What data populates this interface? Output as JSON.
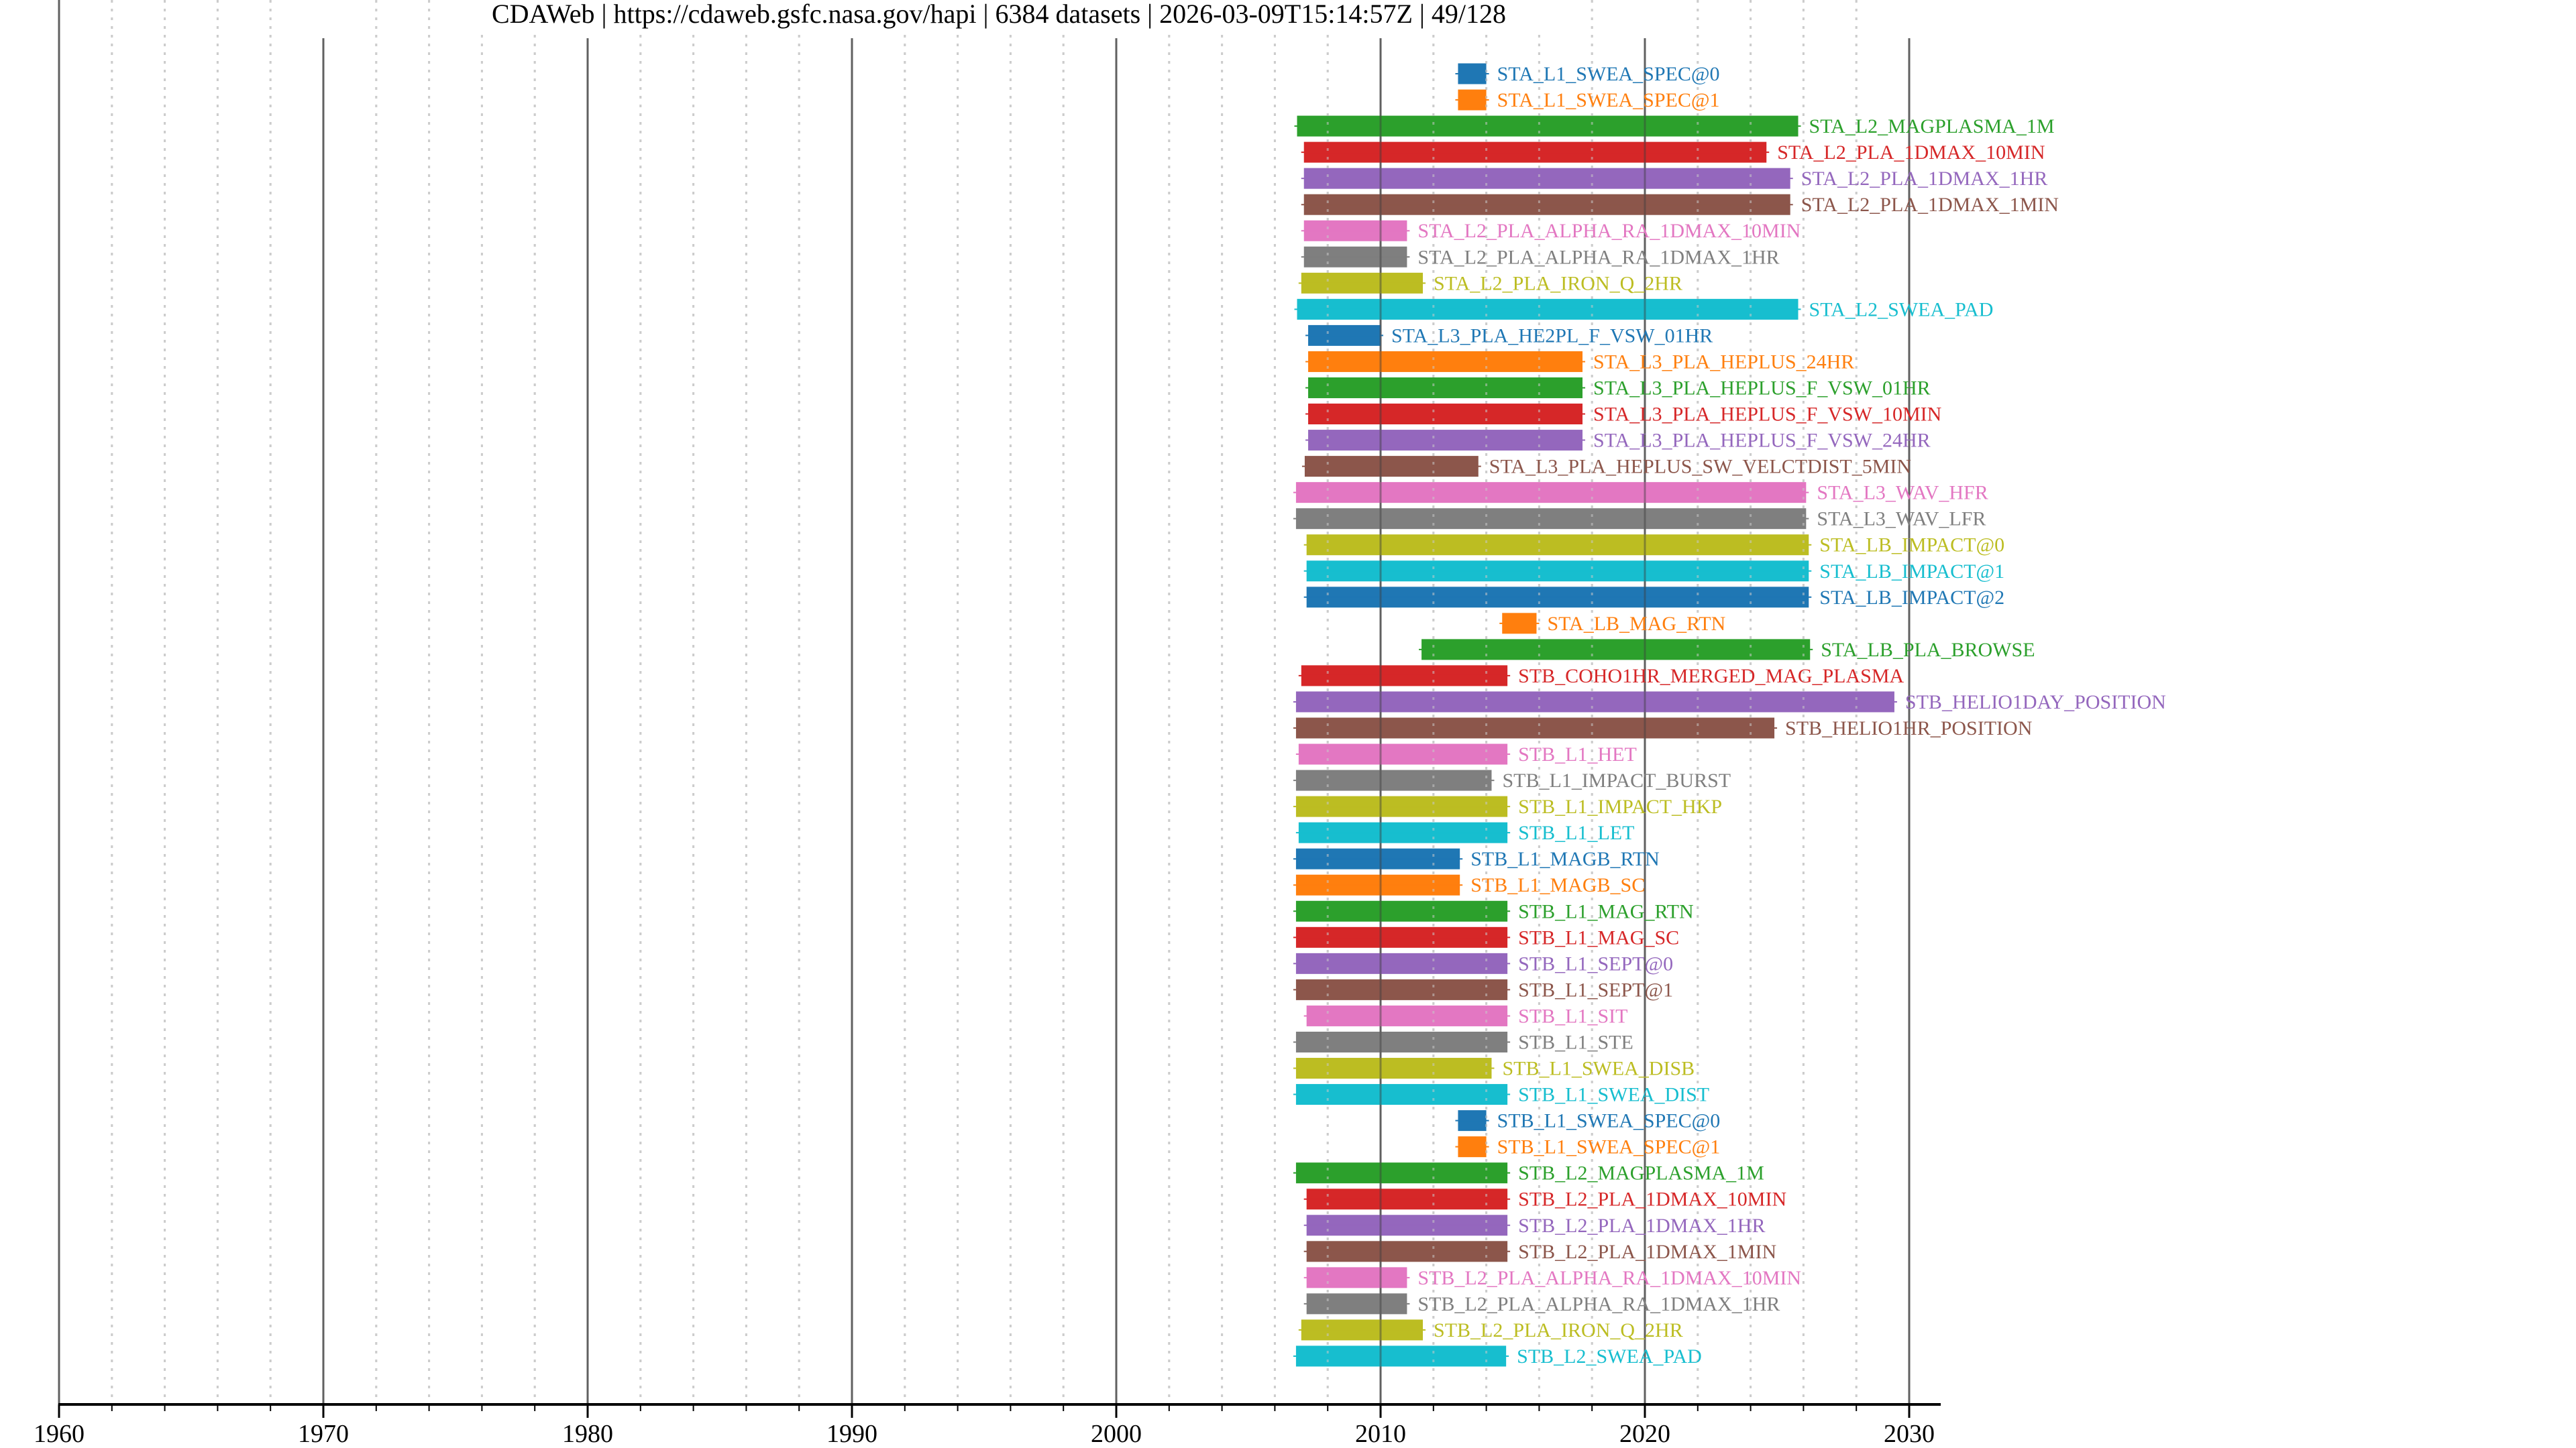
{
  "chart_data": {
    "type": "bar",
    "orientation": "horizontal-timeline",
    "title": "CDAWeb | https://cdaweb.gsfc.nasa.gov/hapi | 6384 datasets | 2026-03-09T15:14:57Z | 49/128",
    "xlabel": "",
    "ylabel": "",
    "xlim": [
      1960,
      2031.2
    ],
    "x_ticks": [
      1960,
      1970,
      1980,
      1990,
      2000,
      2010,
      2020,
      2030
    ],
    "x_tick_labels": [
      "1960",
      "1970",
      "1980",
      "1990",
      "2000",
      "2010",
      "2020",
      "2030"
    ],
    "minor_tick_step_years": 2,
    "grid": "major solid, minor dashed",
    "legend": "none (labels at bar ends)",
    "color_cycle": [
      "#1f77b4",
      "#ff7f0e",
      "#2ca02c",
      "#d62728",
      "#9467bd",
      "#8c564b",
      "#e377c2",
      "#7f7f7f",
      "#bcbd22",
      "#17becf"
    ],
    "series": [
      {
        "name": "STA_L1_SWEA_SPEC@0",
        "start": 2012.93,
        "end": 2014.0
      },
      {
        "name": "STA_L1_SWEA_SPEC@1",
        "start": 2012.93,
        "end": 2014.0
      },
      {
        "name": "STA_L2_MAGPLASMA_1M",
        "start": 2006.84,
        "end": 2025.8
      },
      {
        "name": "STA_L2_PLA_1DMAX_10MIN",
        "start": 2007.1,
        "end": 2024.6
      },
      {
        "name": "STA_L2_PLA_1DMAX_1HR",
        "start": 2007.1,
        "end": 2025.5
      },
      {
        "name": "STA_L2_PLA_1DMAX_1MIN",
        "start": 2007.1,
        "end": 2025.5
      },
      {
        "name": "STA_L2_PLA_ALPHA_RA_1DMAX_10MIN",
        "start": 2007.1,
        "end": 2011.0
      },
      {
        "name": "STA_L2_PLA_ALPHA_RA_1DMAX_1HR",
        "start": 2007.1,
        "end": 2011.0
      },
      {
        "name": "STA_L2_PLA_IRON_Q_2HR",
        "start": 2007.0,
        "end": 2011.6
      },
      {
        "name": "STA_L2_SWEA_PAD",
        "start": 2006.84,
        "end": 2025.8
      },
      {
        "name": "STA_L3_PLA_HE2PL_F_VSW_01HR",
        "start": 2007.26,
        "end": 2010.0
      },
      {
        "name": "STA_L3_PLA_HEPLUS_24HR",
        "start": 2007.26,
        "end": 2017.64
      },
      {
        "name": "STA_L3_PLA_HEPLUS_F_VSW_01HR",
        "start": 2007.26,
        "end": 2017.64
      },
      {
        "name": "STA_L3_PLA_HEPLUS_F_VSW_10MIN",
        "start": 2007.26,
        "end": 2017.64
      },
      {
        "name": "STA_L3_PLA_HEPLUS_F_VSW_24HR",
        "start": 2007.26,
        "end": 2017.64
      },
      {
        "name": "STA_L3_PLA_HEPLUS_SW_VELCTDIST_5MIN",
        "start": 2007.13,
        "end": 2013.7
      },
      {
        "name": "STA_L3_WAV_HFR",
        "start": 2006.8,
        "end": 2026.1
      },
      {
        "name": "STA_L3_WAV_LFR",
        "start": 2006.8,
        "end": 2026.1
      },
      {
        "name": "STA_LB_IMPACT@0",
        "start": 2007.2,
        "end": 2026.2
      },
      {
        "name": "STA_LB_IMPACT@1",
        "start": 2007.2,
        "end": 2026.2
      },
      {
        "name": "STA_LB_IMPACT@2",
        "start": 2007.2,
        "end": 2026.2
      },
      {
        "name": "STA_LB_MAG_RTN",
        "start": 2014.6,
        "end": 2015.9
      },
      {
        "name": "STA_LB_PLA_BROWSE",
        "start": 2011.55,
        "end": 2026.25
      },
      {
        "name": "STB_COHO1HR_MERGED_MAG_PLASMA",
        "start": 2007.0,
        "end": 2014.8
      },
      {
        "name": "STB_HELIO1DAY_POSITION",
        "start": 2006.8,
        "end": 2029.44
      },
      {
        "name": "STB_HELIO1HR_POSITION",
        "start": 2006.8,
        "end": 2024.9
      },
      {
        "name": "STB_L1_HET",
        "start": 2006.9,
        "end": 2014.8
      },
      {
        "name": "STB_L1_IMPACT_BURST",
        "start": 2006.8,
        "end": 2014.2
      },
      {
        "name": "STB_L1_IMPACT_HKP",
        "start": 2006.8,
        "end": 2014.8
      },
      {
        "name": "STB_L1_LET",
        "start": 2006.9,
        "end": 2014.8
      },
      {
        "name": "STB_L1_MAGB_RTN",
        "start": 2006.8,
        "end": 2013.0
      },
      {
        "name": "STB_L1_MAGB_SC",
        "start": 2006.8,
        "end": 2013.0
      },
      {
        "name": "STB_L1_MAG_RTN",
        "start": 2006.8,
        "end": 2014.8
      },
      {
        "name": "STB_L1_MAG_SC",
        "start": 2006.8,
        "end": 2014.8
      },
      {
        "name": "STB_L1_SEPT@0",
        "start": 2006.8,
        "end": 2014.8
      },
      {
        "name": "STB_L1_SEPT@1",
        "start": 2006.8,
        "end": 2014.8
      },
      {
        "name": "STB_L1_SIT",
        "start": 2007.2,
        "end": 2014.8
      },
      {
        "name": "STB_L1_STE",
        "start": 2006.8,
        "end": 2014.8
      },
      {
        "name": "STB_L1_SWEA_DISB",
        "start": 2006.8,
        "end": 2014.2
      },
      {
        "name": "STB_L1_SWEA_DIST",
        "start": 2006.8,
        "end": 2014.8
      },
      {
        "name": "STB_L1_SWEA_SPEC@0",
        "start": 2012.93,
        "end": 2014.0
      },
      {
        "name": "STB_L1_SWEA_SPEC@1",
        "start": 2012.93,
        "end": 2014.0
      },
      {
        "name": "STB_L2_MAGPLASMA_1M",
        "start": 2006.8,
        "end": 2014.8
      },
      {
        "name": "STB_L2_PLA_1DMAX_10MIN",
        "start": 2007.2,
        "end": 2014.8
      },
      {
        "name": "STB_L2_PLA_1DMAX_1HR",
        "start": 2007.2,
        "end": 2014.8
      },
      {
        "name": "STB_L2_PLA_1DMAX_1MIN",
        "start": 2007.2,
        "end": 2014.8
      },
      {
        "name": "STB_L2_PLA_ALPHA_RA_1DMAX_10MIN",
        "start": 2007.2,
        "end": 2011.0
      },
      {
        "name": "STB_L2_PLA_ALPHA_RA_1DMAX_1HR",
        "start": 2007.2,
        "end": 2011.0
      },
      {
        "name": "STB_L2_PLA_IRON_Q_2HR",
        "start": 2007.0,
        "end": 2011.6
      },
      {
        "name": "STB_L2_SWEA_PAD",
        "start": 2006.8,
        "end": 2014.75
      }
    ]
  }
}
